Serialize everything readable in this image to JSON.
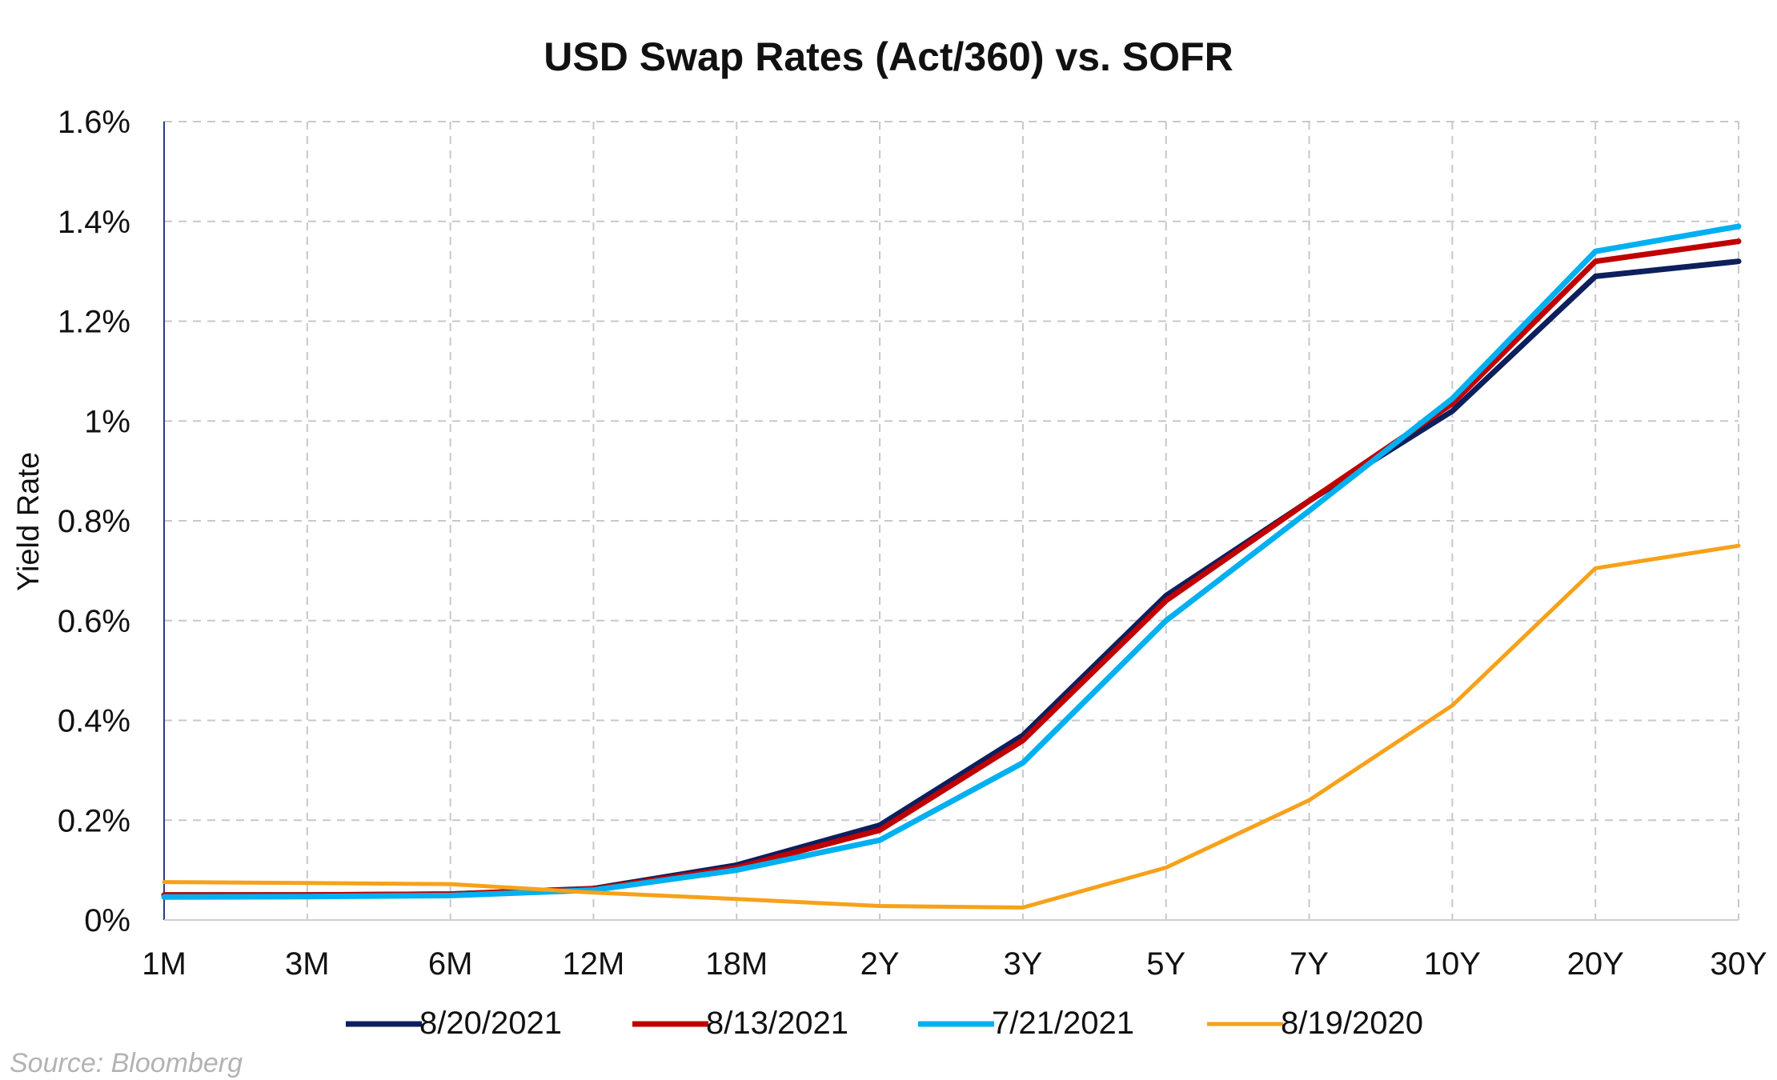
{
  "chart_data": {
    "type": "line",
    "title": "USD Swap Rates (Act/360) vs. SOFR",
    "xlabel": "",
    "ylabel": "Yield Rate",
    "categories": [
      "1M",
      "3M",
      "6M",
      "12M",
      "18M",
      "2Y",
      "3Y",
      "5Y",
      "7Y",
      "10Y",
      "20Y",
      "30Y"
    ],
    "ylim": [
      0,
      1.6
    ],
    "yticks": [
      {
        "value": 0,
        "label": "0%"
      },
      {
        "value": 0.2,
        "label": "0.2%"
      },
      {
        "value": 0.4,
        "label": "0.4%"
      },
      {
        "value": 0.6,
        "label": "0.6%"
      },
      {
        "value": 0.8,
        "label": "0.8%"
      },
      {
        "value": 1.0,
        "label": "1%"
      },
      {
        "value": 1.2,
        "label": "1.2%"
      },
      {
        "value": 1.4,
        "label": "1.4%"
      },
      {
        "value": 1.6,
        "label": "1.6%"
      }
    ],
    "grid": true,
    "legend_position": "bottom",
    "series": [
      {
        "name": "8/20/2021",
        "color": "#0d1f5c",
        "values": [
          0.05,
          0.05,
          0.052,
          0.063,
          0.11,
          0.19,
          0.37,
          0.65,
          0.84,
          1.02,
          1.29,
          1.32
        ]
      },
      {
        "name": "8/13/2021",
        "color": "#c00000",
        "values": [
          0.05,
          0.05,
          0.052,
          0.062,
          0.105,
          0.18,
          0.36,
          0.64,
          0.84,
          1.035,
          1.32,
          1.36
        ]
      },
      {
        "name": "7/21/2021",
        "color": "#00b0f0",
        "values": [
          0.046,
          0.047,
          0.049,
          0.06,
          0.1,
          0.16,
          0.315,
          0.6,
          0.82,
          1.045,
          1.34,
          1.39
        ]
      },
      {
        "name": "8/19/2020",
        "color": "#f7a11a",
        "values": [
          0.076,
          0.074,
          0.072,
          0.055,
          0.042,
          0.028,
          0.025,
          0.105,
          0.24,
          0.43,
          0.705,
          0.75
        ]
      }
    ]
  },
  "source": "Source: Bloomberg"
}
